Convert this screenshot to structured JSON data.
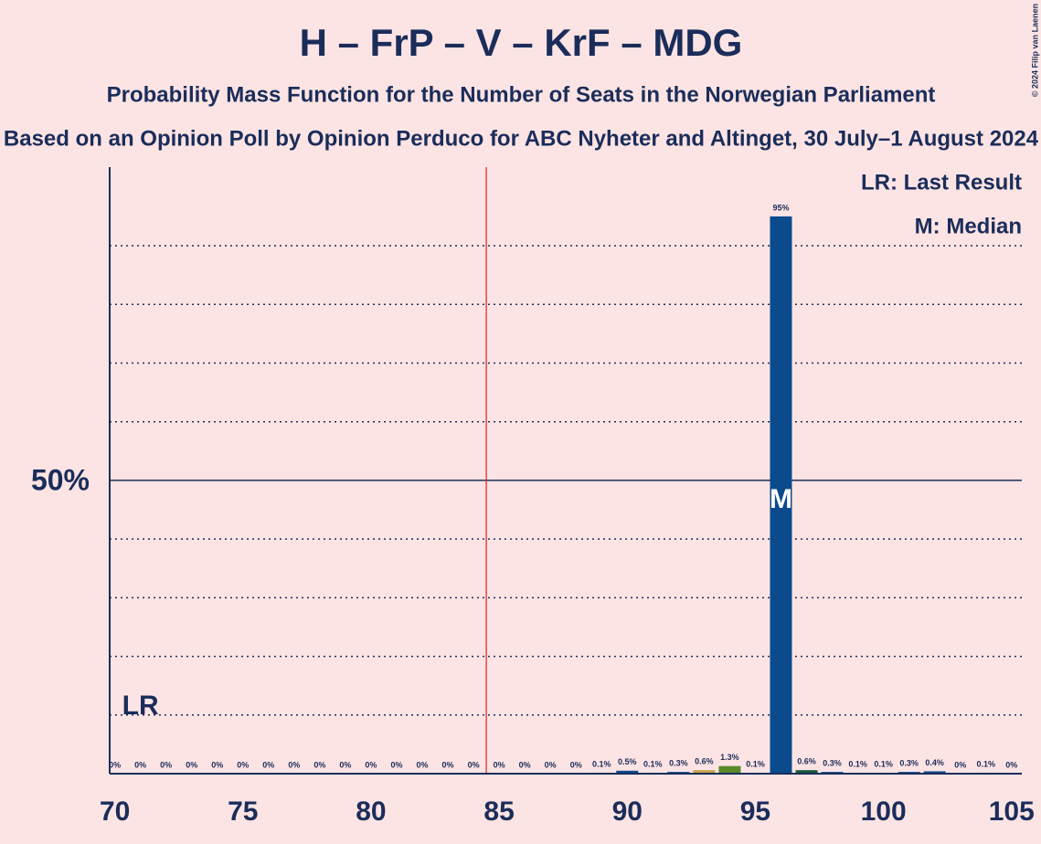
{
  "chart_data": {
    "type": "bar",
    "title": "H – FrP – V – KrF – MDG",
    "subtitle": "Probability Mass Function for the Number of Seats in the Norwegian Parliament",
    "subtitle2": "Based on an Opinion Poll by Opinion Perduco for ABC Nyheter and Altinget, 30 July–1 August 2024",
    "copyright": "© 2024 Filip van Laenen",
    "x": [
      70,
      71,
      72,
      73,
      74,
      75,
      76,
      77,
      78,
      79,
      80,
      81,
      82,
      83,
      84,
      85,
      86,
      87,
      88,
      89,
      90,
      91,
      92,
      93,
      94,
      95,
      96,
      97,
      98,
      99,
      100,
      101,
      102,
      103,
      104,
      105
    ],
    "values": [
      0,
      0,
      0,
      0,
      0,
      0,
      0,
      0,
      0,
      0,
      0,
      0,
      0,
      0,
      0,
      0,
      0,
      0,
      0,
      0.1,
      0.5,
      0.1,
      0.3,
      0.6,
      1.3,
      0.1,
      95,
      0.6,
      0.3,
      0.1,
      0.1,
      0.3,
      0.4,
      0,
      0.1,
      0
    ],
    "value_labels": [
      "0%",
      "0%",
      "0%",
      "0%",
      "0%",
      "0%",
      "0%",
      "0%",
      "0%",
      "0%",
      "0%",
      "0%",
      "0%",
      "0%",
      "0%",
      "0%",
      "0%",
      "0%",
      "0%",
      "0.1%",
      "0.5%",
      "0.1%",
      "0.3%",
      "0.6%",
      "1.3%",
      "0.1%",
      "95%",
      "0.6%",
      "0.3%",
      "0.1%",
      "0.1%",
      "0.3%",
      "0.4%",
      "0%",
      "0.1%",
      "0%"
    ],
    "colors": [
      "#0b4a8c",
      "#0b4a8c",
      "#0b4a8c",
      "#0b4a8c",
      "#0b4a8c",
      "#0b4a8c",
      "#0b4a8c",
      "#0b4a8c",
      "#0b4a8c",
      "#0b4a8c",
      "#0b4a8c",
      "#0b4a8c",
      "#0b4a8c",
      "#0b4a8c",
      "#0b4a8c",
      "#0b4a8c",
      "#0b4a8c",
      "#0b4a8c",
      "#0b4a8c",
      "#0b4a8c",
      "#0b4a8c",
      "#0b4a8c",
      "#0b4a8c",
      "#c8a24a",
      "#5a8a2a",
      "#0b4a8c",
      "#0b4a8c",
      "#1a5a3a",
      "#0b4a8c",
      "#0b4a8c",
      "#0b4a8c",
      "#0b4a8c",
      "#0b4a8c",
      "#0b4a8c",
      "#0b4a8c",
      "#0b4a8c"
    ],
    "xlim": [
      69.8,
      105.4
    ],
    "xticks": [
      70,
      75,
      80,
      85,
      90,
      95,
      100,
      105
    ],
    "ylim": [
      0,
      103.4
    ],
    "yticks": [
      {
        "value": 50,
        "label": "50%"
      }
    ],
    "gridlines": [
      10,
      20,
      30,
      40,
      60,
      70,
      80,
      90
    ],
    "majority": 85,
    "last_result": {
      "x": 71,
      "label": "LR"
    },
    "median": {
      "x": 96,
      "label": "M"
    },
    "legend": [
      "LR: Last Result",
      "M: Median"
    ]
  }
}
